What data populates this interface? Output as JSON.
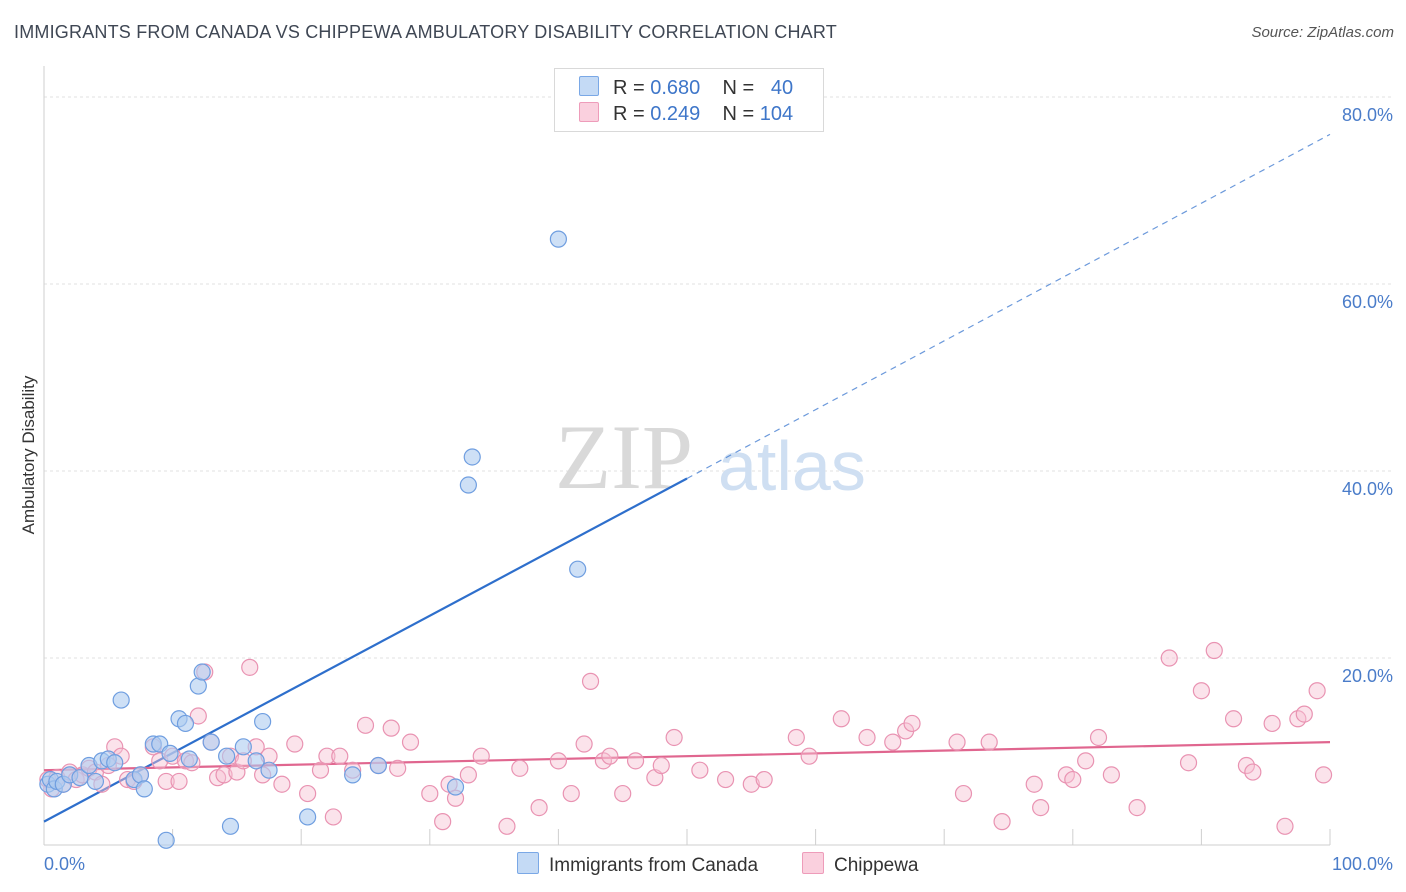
{
  "title": "IMMIGRANTS FROM CANADA VS CHIPPEWA AMBULATORY DISABILITY CORRELATION CHART",
  "source": "Source: ZipAtlas.com",
  "watermark": {
    "zip": "ZIP",
    "atlas": "atlas"
  },
  "legend": {
    "rows": [
      {
        "r_label": "R =",
        "r_value": "0.680",
        "n_label": "N =",
        "n_value": "40"
      },
      {
        "r_label": "R =",
        "r_value": "0.249",
        "n_label": "N =",
        "n_value": "104"
      }
    ]
  },
  "bottom_legend": {
    "canada": "Immigrants from Canada",
    "chippewa": "Chippewa"
  },
  "colors": {
    "canada_fill": "#aecbf0",
    "canada_stroke": "#6f9ee0",
    "canada_line": "#2e6fcc",
    "chippewa_fill": "#f7c0d2",
    "chippewa_stroke": "#e993b2",
    "chippewa_line": "#e0668f"
  },
  "chart_data": {
    "type": "scatter",
    "title": "IMMIGRANTS FROM CANADA VS CHIPPEWA AMBULATORY DISABILITY CORRELATION CHART",
    "xlabel": "",
    "ylabel": "Ambulatory Disability",
    "xlim": [
      0,
      100
    ],
    "ylim": [
      0,
      80
    ],
    "x_tick_labels": [
      "0.0%",
      "100.0%"
    ],
    "y_ticks": [
      20,
      40,
      60,
      80
    ],
    "y_tick_labels": [
      "20.0%",
      "40.0%",
      "60.0%",
      "80.0%"
    ],
    "grid": true,
    "series": [
      {
        "name": "Immigrants from Canada",
        "r": 0.68,
        "n": 40,
        "points": [
          [
            0.3,
            6.5
          ],
          [
            0.5,
            7.0
          ],
          [
            0.8,
            6.0
          ],
          [
            1.0,
            6.8
          ],
          [
            1.5,
            6.5
          ],
          [
            2.0,
            7.5
          ],
          [
            2.8,
            7.2
          ],
          [
            3.5,
            8.5
          ],
          [
            4.0,
            6.8
          ],
          [
            4.5,
            9.0
          ],
          [
            5.0,
            9.2
          ],
          [
            5.5,
            8.8
          ],
          [
            6.0,
            15.5
          ],
          [
            7.0,
            7.0
          ],
          [
            7.5,
            7.5
          ],
          [
            7.8,
            6.0
          ],
          [
            8.5,
            10.8
          ],
          [
            9.0,
            10.8
          ],
          [
            9.5,
            0.5
          ],
          [
            9.8,
            9.8
          ],
          [
            10.5,
            13.5
          ],
          [
            11.0,
            13.0
          ],
          [
            11.3,
            9.2
          ],
          [
            12.0,
            17.0
          ],
          [
            12.3,
            18.5
          ],
          [
            13.0,
            11.0
          ],
          [
            14.2,
            9.5
          ],
          [
            14.5,
            2.0
          ],
          [
            15.5,
            10.5
          ],
          [
            16.5,
            9.0
          ],
          [
            17.0,
            13.2
          ],
          [
            17.5,
            8.0
          ],
          [
            20.5,
            3.0
          ],
          [
            24.0,
            7.5
          ],
          [
            26.0,
            8.5
          ],
          [
            32.0,
            6.2
          ],
          [
            33.0,
            38.5
          ],
          [
            33.3,
            41.5
          ],
          [
            40.0,
            64.8
          ],
          [
            41.5,
            29.5
          ]
        ],
        "trend": {
          "x0": 0,
          "y0": 2.5,
          "x1": 50,
          "y1": 39.2,
          "dash_to_x": 100,
          "dash_to_y": 76.0
        }
      },
      {
        "name": "Chippewa",
        "r": 0.249,
        "n": 104,
        "points": [
          [
            0.3,
            7.0
          ],
          [
            0.6,
            6.0
          ],
          [
            1.0,
            7.2
          ],
          [
            1.5,
            6.5
          ],
          [
            2.0,
            7.8
          ],
          [
            2.5,
            7.0
          ],
          [
            3.0,
            7.5
          ],
          [
            3.5,
            8.2
          ],
          [
            4.0,
            7.8
          ],
          [
            4.5,
            6.5
          ],
          [
            5.0,
            8.5
          ],
          [
            5.5,
            10.5
          ],
          [
            6.0,
            9.5
          ],
          [
            6.5,
            7.0
          ],
          [
            7.0,
            6.8
          ],
          [
            7.5,
            7.5
          ],
          [
            8.5,
            10.5
          ],
          [
            9.0,
            9.0
          ],
          [
            9.5,
            6.8
          ],
          [
            10.0,
            9.5
          ],
          [
            10.5,
            6.8
          ],
          [
            11.0,
            9.0
          ],
          [
            11.5,
            8.8
          ],
          [
            12.0,
            13.8
          ],
          [
            12.5,
            18.5
          ],
          [
            13.0,
            11.0
          ],
          [
            13.5,
            7.2
          ],
          [
            14.0,
            7.5
          ],
          [
            14.5,
            9.5
          ],
          [
            15.0,
            7.8
          ],
          [
            15.5,
            9.0
          ],
          [
            16.0,
            19.0
          ],
          [
            16.5,
            10.5
          ],
          [
            17.0,
            7.5
          ],
          [
            17.5,
            9.5
          ],
          [
            18.5,
            6.5
          ],
          [
            19.5,
            10.8
          ],
          [
            20.5,
            5.5
          ],
          [
            21.5,
            8.0
          ],
          [
            22.0,
            9.5
          ],
          [
            22.5,
            3.0
          ],
          [
            23.0,
            9.5
          ],
          [
            24.0,
            8.0
          ],
          [
            25.0,
            12.8
          ],
          [
            26.0,
            8.5
          ],
          [
            27.0,
            12.5
          ],
          [
            27.5,
            8.2
          ],
          [
            28.5,
            11.0
          ],
          [
            30.0,
            5.5
          ],
          [
            31.0,
            2.5
          ],
          [
            31.5,
            6.5
          ],
          [
            32.0,
            5.0
          ],
          [
            33.0,
            7.5
          ],
          [
            34.0,
            9.5
          ],
          [
            36.0,
            2.0
          ],
          [
            37.0,
            8.2
          ],
          [
            38.5,
            4.0
          ],
          [
            40.0,
            9.0
          ],
          [
            41.0,
            5.5
          ],
          [
            42.0,
            10.8
          ],
          [
            42.5,
            17.5
          ],
          [
            43.5,
            9.0
          ],
          [
            44.0,
            9.5
          ],
          [
            45.0,
            5.5
          ],
          [
            46.0,
            9.0
          ],
          [
            47.5,
            7.2
          ],
          [
            48.0,
            8.5
          ],
          [
            49.0,
            11.5
          ],
          [
            51.0,
            8.0
          ],
          [
            53.0,
            7.0
          ],
          [
            55.0,
            6.5
          ],
          [
            56.0,
            7.0
          ],
          [
            58.5,
            11.5
          ],
          [
            59.5,
            9.5
          ],
          [
            62.0,
            13.5
          ],
          [
            64.0,
            11.5
          ],
          [
            66.0,
            11.0
          ],
          [
            67.0,
            12.2
          ],
          [
            67.5,
            13.0
          ],
          [
            71.0,
            11.0
          ],
          [
            71.5,
            5.5
          ],
          [
            73.5,
            11.0
          ],
          [
            74.5,
            2.5
          ],
          [
            77.0,
            6.5
          ],
          [
            77.5,
            4.0
          ],
          [
            79.5,
            7.5
          ],
          [
            80.0,
            7.0
          ],
          [
            81.0,
            9.0
          ],
          [
            82.0,
            11.5
          ],
          [
            83.0,
            7.5
          ],
          [
            85.0,
            4.0
          ],
          [
            87.5,
            20.0
          ],
          [
            89.0,
            8.8
          ],
          [
            90.0,
            16.5
          ],
          [
            91.0,
            20.8
          ],
          [
            92.5,
            13.5
          ],
          [
            93.5,
            8.5
          ],
          [
            94.0,
            7.8
          ],
          [
            95.5,
            13.0
          ],
          [
            96.5,
            2.0
          ],
          [
            97.5,
            13.5
          ],
          [
            98.0,
            14.0
          ],
          [
            99.0,
            16.5
          ],
          [
            99.5,
            7.5
          ]
        ],
        "trend": {
          "x0": 0,
          "y0": 8.0,
          "x1": 100,
          "y1": 11.0
        }
      }
    ]
  }
}
